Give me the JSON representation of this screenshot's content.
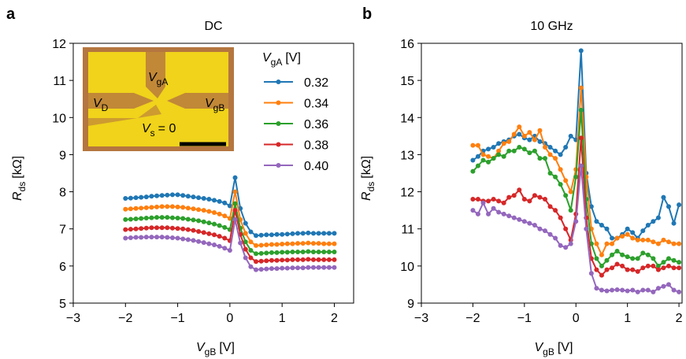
{
  "chart_data": [
    {
      "type": "line",
      "panel_label": "a",
      "title": "DC",
      "xlabel": {
        "text": "V",
        "sub": "gB",
        "unit": "[V]"
      },
      "ylabel": {
        "text": "R",
        "sub": "ds",
        "unit": "[kΩ]"
      },
      "xlim": [
        -3,
        2.37
      ],
      "ylim": [
        5,
        12
      ],
      "xticks": [
        {
          "value": -3,
          "label": "−3"
        },
        {
          "value": -2,
          "label": "−2"
        },
        {
          "value": -1,
          "label": "−1"
        },
        0,
        1,
        2
      ],
      "yticks": [
        5,
        6,
        7,
        8,
        9,
        10,
        11,
        12
      ],
      "legend_title": {
        "text": "V",
        "sub": "gA",
        "unit": "[V]"
      },
      "inset": {
        "labels": [
          {
            "text": "V",
            "sub": "gA"
          },
          {
            "text": "V",
            "sub": "D"
          },
          {
            "text": "V",
            "sub": "gB"
          },
          {
            "text": "V",
            "sub": "s",
            "rest": "= 0"
          }
        ]
      },
      "x": [
        -2.0,
        -1.9,
        -1.8,
        -1.7,
        -1.6,
        -1.5,
        -1.4,
        -1.3,
        -1.2,
        -1.1,
        -1.0,
        -0.9,
        -0.8,
        -0.7,
        -0.6,
        -0.5,
        -0.4,
        -0.3,
        -0.2,
        -0.1,
        0.0,
        0.1,
        0.2,
        0.3,
        0.4,
        0.5,
        0.6,
        0.7,
        0.8,
        0.9,
        1.0,
        1.1,
        1.2,
        1.3,
        1.4,
        1.5,
        1.6,
        1.7,
        1.8,
        1.9,
        2.0
      ],
      "series": [
        {
          "name": "0.32",
          "color": "#1f77b4",
          "values": [
            7.82,
            7.83,
            7.84,
            7.85,
            7.86,
            7.88,
            7.89,
            7.9,
            7.91,
            7.92,
            7.92,
            7.9,
            7.88,
            7.86,
            7.84,
            7.82,
            7.8,
            7.77,
            7.74,
            7.7,
            7.62,
            8.38,
            7.55,
            7.15,
            6.92,
            6.82,
            6.83,
            6.84,
            6.84,
            6.85,
            6.85,
            6.86,
            6.87,
            6.88,
            6.88,
            6.89,
            6.88,
            6.88,
            6.88,
            6.88,
            6.88
          ]
        },
        {
          "name": "0.34",
          "color": "#ff7f0e",
          "values": [
            7.53,
            7.54,
            7.55,
            7.56,
            7.57,
            7.58,
            7.59,
            7.6,
            7.6,
            7.6,
            7.59,
            7.58,
            7.56,
            7.54,
            7.52,
            7.5,
            7.47,
            7.44,
            7.4,
            7.35,
            7.28,
            8.0,
            7.25,
            6.88,
            6.65,
            6.55,
            6.56,
            6.57,
            6.58,
            6.58,
            6.59,
            6.6,
            6.6,
            6.61,
            6.61,
            6.62,
            6.61,
            6.61,
            6.6,
            6.6,
            6.6
          ]
        },
        {
          "name": "0.36",
          "color": "#2ca02c",
          "values": [
            7.25,
            7.26,
            7.27,
            7.28,
            7.29,
            7.3,
            7.31,
            7.31,
            7.31,
            7.3,
            7.29,
            7.28,
            7.26,
            7.24,
            7.22,
            7.19,
            7.16,
            7.13,
            7.09,
            7.04,
            6.98,
            7.68,
            7.02,
            6.65,
            6.42,
            6.33,
            6.34,
            6.35,
            6.36,
            6.36,
            6.37,
            6.37,
            6.38,
            6.38,
            6.38,
            6.39,
            6.38,
            6.38,
            6.38,
            6.38,
            6.38
          ]
        },
        {
          "name": "0.38",
          "color": "#d62728",
          "values": [
            6.98,
            6.99,
            7.0,
            7.01,
            7.02,
            7.03,
            7.03,
            7.03,
            7.03,
            7.02,
            7.01,
            7.0,
            6.98,
            6.96,
            6.93,
            6.9,
            6.87,
            6.84,
            6.8,
            6.75,
            6.68,
            7.5,
            6.85,
            6.45,
            6.22,
            6.12,
            6.13,
            6.14,
            6.15,
            6.15,
            6.16,
            6.16,
            6.17,
            6.17,
            6.17,
            6.18,
            6.17,
            6.17,
            6.17,
            6.17,
            6.17
          ]
        },
        {
          "name": "0.40",
          "color": "#9467bd",
          "values": [
            6.75,
            6.76,
            6.77,
            6.77,
            6.78,
            6.78,
            6.78,
            6.78,
            6.77,
            6.76,
            6.75,
            6.73,
            6.71,
            6.69,
            6.66,
            6.63,
            6.6,
            6.57,
            6.53,
            6.48,
            6.42,
            7.25,
            6.62,
            6.22,
            5.98,
            5.9,
            5.91,
            5.92,
            5.93,
            5.93,
            5.94,
            5.94,
            5.95,
            5.95,
            5.95,
            5.96,
            5.96,
            5.96,
            5.96,
            5.96,
            5.96
          ]
        }
      ]
    },
    {
      "type": "line",
      "panel_label": "b",
      "title": "10 GHz",
      "xlabel": {
        "text": "V",
        "sub": "gB",
        "unit": "[V]"
      },
      "ylabel": {
        "text": "R",
        "sub": "ds",
        "unit": "[kΩ]"
      },
      "xlim": [
        -3,
        2.06
      ],
      "ylim": [
        9,
        16
      ],
      "xticks": [
        {
          "value": -3,
          "label": "−3"
        },
        {
          "value": -2,
          "label": "−2"
        },
        {
          "value": -1,
          "label": "−1"
        },
        0,
        1,
        2
      ],
      "yticks": [
        9,
        10,
        11,
        12,
        13,
        14,
        15,
        16
      ],
      "x": [
        -2.0,
        -1.9,
        -1.8,
        -1.7,
        -1.6,
        -1.5,
        -1.4,
        -1.3,
        -1.2,
        -1.1,
        -1.0,
        -0.9,
        -0.8,
        -0.7,
        -0.6,
        -0.5,
        -0.4,
        -0.3,
        -0.2,
        -0.1,
        0.0,
        0.1,
        0.2,
        0.3,
        0.4,
        0.5,
        0.6,
        0.7,
        0.8,
        0.9,
        1.0,
        1.1,
        1.2,
        1.3,
        1.4,
        1.5,
        1.6,
        1.7,
        1.8,
        1.9,
        2.0
      ],
      "series": [
        {
          "color": "#1f77b4",
          "values": [
            12.85,
            12.95,
            13.1,
            13.15,
            13.2,
            13.3,
            13.35,
            13.4,
            13.5,
            13.55,
            13.45,
            13.4,
            13.5,
            13.35,
            13.3,
            13.2,
            13.1,
            13.0,
            13.2,
            13.5,
            13.4,
            15.8,
            12.5,
            11.6,
            11.2,
            11.1,
            11.0,
            10.75,
            10.75,
            10.85,
            11.0,
            10.9,
            10.75,
            10.95,
            11.1,
            11.2,
            11.3,
            11.85,
            11.6,
            11.15,
            11.65
          ]
        },
        {
          "color": "#ff7f0e",
          "values": [
            13.25,
            13.25,
            13.0,
            12.95,
            12.9,
            13.1,
            13.3,
            13.35,
            13.55,
            13.75,
            13.5,
            13.6,
            13.4,
            13.65,
            13.2,
            13.0,
            12.9,
            12.6,
            12.3,
            12.0,
            12.6,
            14.8,
            12.4,
            11.0,
            10.6,
            10.3,
            10.6,
            10.6,
            10.75,
            10.8,
            10.85,
            10.75,
            10.7,
            10.7,
            10.7,
            10.65,
            10.6,
            10.7,
            10.65,
            10.6,
            10.6
          ]
        },
        {
          "color": "#2ca02c",
          "values": [
            12.55,
            12.7,
            12.85,
            12.8,
            12.9,
            13.0,
            12.95,
            13.1,
            13.1,
            13.2,
            13.15,
            13.05,
            13.1,
            12.9,
            12.9,
            12.5,
            12.4,
            12.2,
            11.9,
            11.5,
            12.4,
            14.2,
            11.8,
            10.6,
            10.2,
            10.0,
            10.15,
            10.3,
            10.4,
            10.3,
            10.25,
            10.2,
            10.2,
            10.35,
            10.3,
            10.2,
            10.0,
            10.1,
            10.2,
            10.15,
            10.1
          ]
        },
        {
          "color": "#d62728",
          "values": [
            11.8,
            11.8,
            11.75,
            11.75,
            11.8,
            11.75,
            11.7,
            11.85,
            11.9,
            12.05,
            11.8,
            11.75,
            11.9,
            11.85,
            11.8,
            11.6,
            11.5,
            11.3,
            11.0,
            10.7,
            11.4,
            13.45,
            11.3,
            10.2,
            9.9,
            9.75,
            9.9,
            9.95,
            10.05,
            10.0,
            9.9,
            9.9,
            9.85,
            9.95,
            10.0,
            10.0,
            9.9,
            9.95,
            10.0,
            9.95,
            9.95
          ]
        },
        {
          "color": "#9467bd",
          "values": [
            11.5,
            11.4,
            11.7,
            11.4,
            11.55,
            11.45,
            11.4,
            11.35,
            11.3,
            11.25,
            11.2,
            11.15,
            11.1,
            11.0,
            10.95,
            10.85,
            10.75,
            10.55,
            10.5,
            10.6,
            11.2,
            12.7,
            11.0,
            9.8,
            9.4,
            9.35,
            9.33,
            9.35,
            9.36,
            9.35,
            9.33,
            9.35,
            9.3,
            9.35,
            9.35,
            9.3,
            9.4,
            9.45,
            9.5,
            9.35,
            9.3
          ]
        }
      ]
    }
  ]
}
